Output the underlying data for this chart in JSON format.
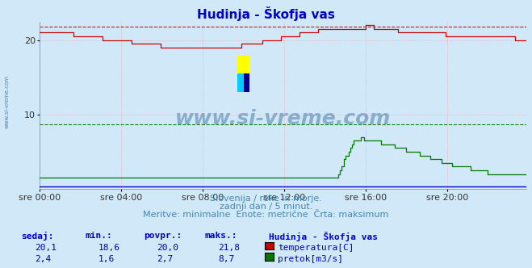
{
  "title": "Hudinja - Škofja vas",
  "title_color": "#0000cc",
  "bg_color": "#d0e8f8",
  "plot_bg_color": "#d0e8f8",
  "grid_color": "#ff9999",
  "grid_style": ":",
  "xlabel_ticks": [
    "sre 00:00",
    "sre 04:00",
    "sre 08:00",
    "sre 12:00",
    "sre 16:00",
    "sre 20:00"
  ],
  "ylim": [
    0,
    22.5
  ],
  "yticks": [
    10,
    20
  ],
  "xlim": [
    0,
    287
  ],
  "n_points": 288,
  "temp_color": "#cc0000",
  "flow_color": "#007700",
  "watermark_color": "#336699",
  "subtitle1": "Slovenija / reke in morje.",
  "subtitle2": "zadnji dan / 5 minut.",
  "subtitle3": "Meritve: minimalne  Enote: metrične  Črta: maksimum",
  "subtitle_color": "#4488aa",
  "table_header_color": "#0000cc",
  "table_value_color": "#0000aa",
  "temp_min": 18.6,
  "temp_avg": 20.0,
  "temp_max": 21.8,
  "temp_now": 20.1,
  "flow_min": 1.6,
  "flow_avg": 2.7,
  "flow_max": 8.7,
  "flow_now": 2.4,
  "temp_dashed_max": 21.8,
  "flow_dashed_max": 8.7,
  "blue_line_y": 0.3
}
